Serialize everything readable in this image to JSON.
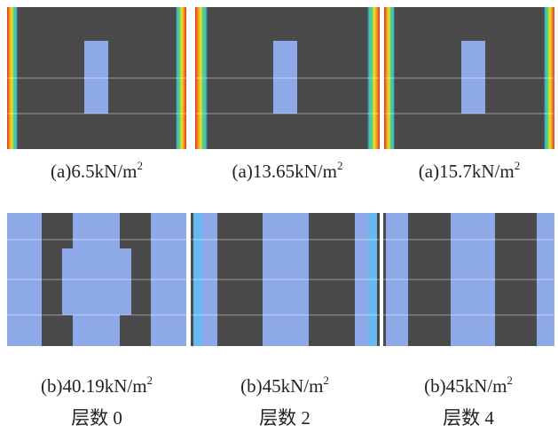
{
  "panels": [
    {
      "caption": "(a)6.5kN/m",
      "sup": "2"
    },
    {
      "caption": "(a)13.65kN/m",
      "sup": "2"
    },
    {
      "caption": "(a)15.7kN/m",
      "sup": "2"
    },
    {
      "caption": "(b)40.19kN/m",
      "sup": "2",
      "layer": "层数 0"
    },
    {
      "caption": "(b)45kN/m",
      "sup": "2",
      "layer": "层数 2"
    },
    {
      "caption": "(b)45kN/m",
      "sup": "2",
      "layer": "层数 4"
    }
  ]
}
